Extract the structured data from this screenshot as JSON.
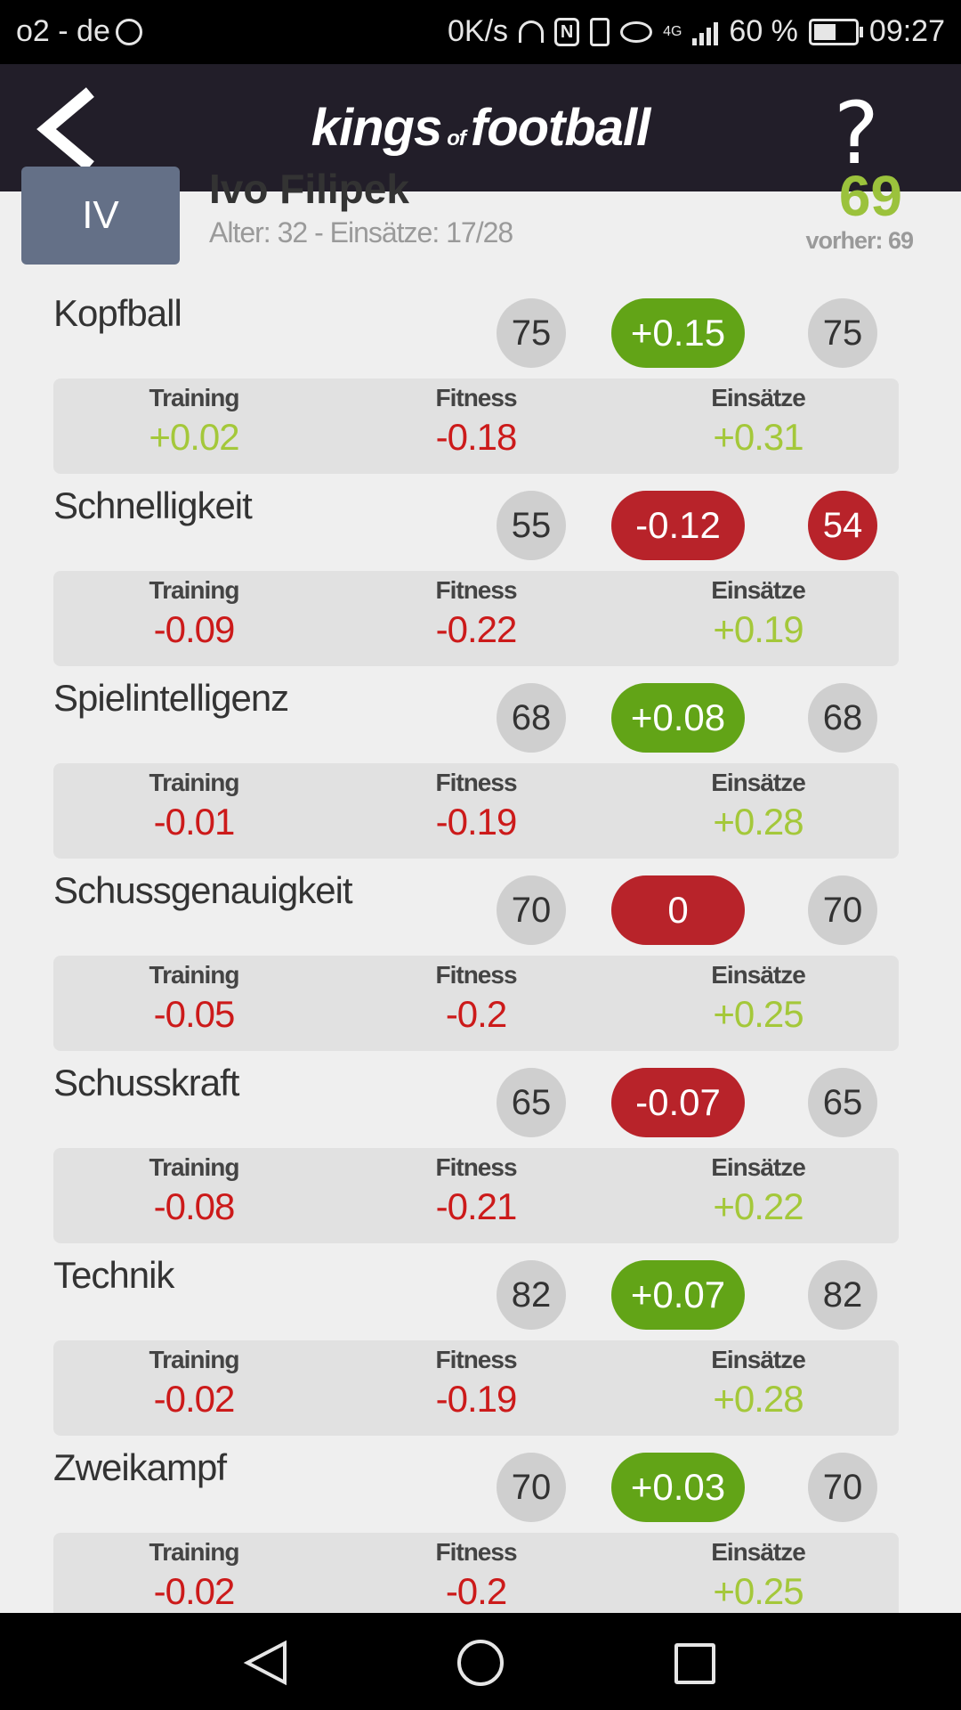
{
  "status_bar": {
    "carrier": "o2 - de",
    "net_speed": "0K/s",
    "network_type": "4G",
    "battery_pct": "60 %",
    "battery_level": 0.6,
    "time": "09:27"
  },
  "app_bar": {
    "logo_part1": "kings",
    "logo_of": "of",
    "logo_part2": "football",
    "help_label": "?",
    "icons": [
      "back-chevron-icon",
      "help-question-icon"
    ]
  },
  "player": {
    "position": "IV",
    "name": "Ivo Filipek",
    "meta": "Alter: 32 - Einsätze: 17/28",
    "rating": "69",
    "previous": "vorher: 69"
  },
  "breakdown_labels": {
    "training": "Training",
    "fitness": "Fitness",
    "matches": "Einsätze"
  },
  "skills": [
    {
      "name": "Kopfball",
      "old": "75",
      "delta": "+0.15",
      "delta_color": "green",
      "new": "75",
      "new_color": "grey",
      "training": "+0.02",
      "training_sign": "pos",
      "fitness": "-0.18",
      "fitness_sign": "neg",
      "matches": "+0.31",
      "matches_sign": "pos"
    },
    {
      "name": "Schnelligkeit",
      "old": "55",
      "delta": "-0.12",
      "delta_color": "red",
      "new": "54",
      "new_color": "red",
      "training": "-0.09",
      "training_sign": "neg",
      "fitness": "-0.22",
      "fitness_sign": "neg",
      "matches": "+0.19",
      "matches_sign": "pos"
    },
    {
      "name": "Spielintelligenz",
      "old": "68",
      "delta": "+0.08",
      "delta_color": "green",
      "new": "68",
      "new_color": "grey",
      "training": "-0.01",
      "training_sign": "neg",
      "fitness": "-0.19",
      "fitness_sign": "neg",
      "matches": "+0.28",
      "matches_sign": "pos"
    },
    {
      "name": "Schussgenauigkeit",
      "old": "70",
      "delta": "0",
      "delta_color": "red",
      "new": "70",
      "new_color": "grey",
      "training": "-0.05",
      "training_sign": "neg",
      "fitness": "-0.2",
      "fitness_sign": "neg",
      "matches": "+0.25",
      "matches_sign": "pos"
    },
    {
      "name": "Schusskraft",
      "old": "65",
      "delta": "-0.07",
      "delta_color": "red",
      "new": "65",
      "new_color": "grey",
      "training": "-0.08",
      "training_sign": "neg",
      "fitness": "-0.21",
      "fitness_sign": "neg",
      "matches": "+0.22",
      "matches_sign": "pos"
    },
    {
      "name": "Technik",
      "old": "82",
      "delta": "+0.07",
      "delta_color": "green",
      "new": "82",
      "new_color": "grey",
      "training": "-0.02",
      "training_sign": "neg",
      "fitness": "-0.19",
      "fitness_sign": "neg",
      "matches": "+0.28",
      "matches_sign": "pos"
    },
    {
      "name": "Zweikampf",
      "old": "70",
      "delta": "+0.03",
      "delta_color": "green",
      "new": "70",
      "new_color": "grey",
      "training": "-0.02",
      "training_sign": "neg",
      "fitness": "-0.2",
      "fitness_sign": "neg",
      "matches": "+0.25",
      "matches_sign": "pos"
    }
  ],
  "colors": {
    "green": "#62a417",
    "red": "#b8232a",
    "positive_text": "#a4c83a",
    "negative_text": "#cc1a1a",
    "header_bg": "#221e29"
  },
  "nav_bar": {
    "icons": [
      "nav-back-icon",
      "nav-home-icon",
      "nav-recent-apps-icon"
    ]
  }
}
